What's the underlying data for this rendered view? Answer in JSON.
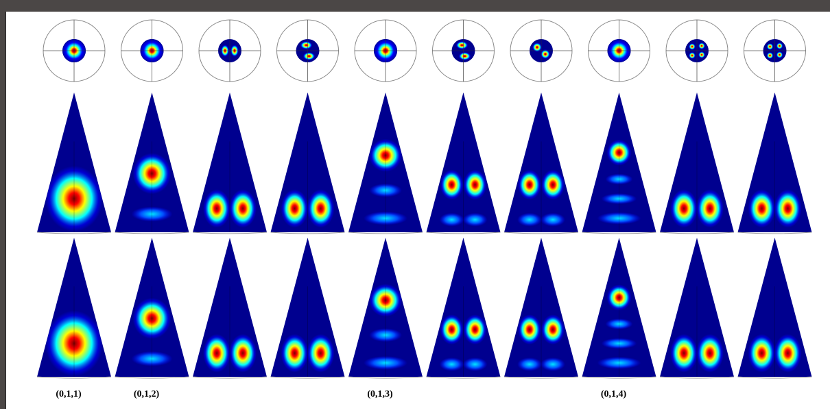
{
  "window": {
    "title": ""
  },
  "figure": {
    "columns": 10,
    "rows": [
      "polar-view",
      "side-view-upper",
      "side-view-lower"
    ],
    "mode_labels": [
      "(0,1,1)",
      "(0,1,2)",
      "",
      "",
      "(0,1,3)",
      "",
      "",
      "(0,1,4)",
      "",
      ""
    ],
    "colormap": [
      "#00007f",
      "#0000ff",
      "#00ffff",
      "#ffff00",
      "#ff0000",
      "#7f0000"
    ],
    "modes": [
      {
        "polar": "single",
        "side": "one-bottom"
      },
      {
        "polar": "single",
        "side": "one-mid-plus-ring"
      },
      {
        "polar": "pair-h",
        "side": "pair-bottom"
      },
      {
        "polar": "pair-diag",
        "side": "pair-bottom"
      },
      {
        "polar": "single",
        "side": "one-upper-plus-rings"
      },
      {
        "polar": "pair-diag",
        "side": "pair-mid-plus-pair"
      },
      {
        "polar": "pair-diag2",
        "side": "pair-mid-plus-pair"
      },
      {
        "polar": "single",
        "side": "one-top-plus-rings"
      },
      {
        "polar": "quad",
        "side": "pair-bottom"
      },
      {
        "polar": "quad",
        "side": "pair-bottom"
      }
    ]
  }
}
